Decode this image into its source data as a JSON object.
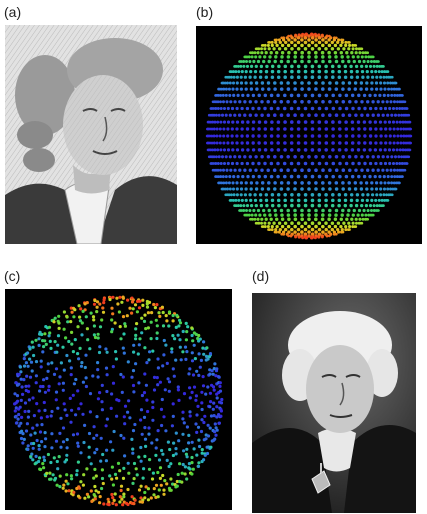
{
  "panels": [
    {
      "id": "a",
      "label": "(a)"
    },
    {
      "id": "b",
      "label": "(b)"
    },
    {
      "id": "c",
      "label": "(c)"
    },
    {
      "id": "d",
      "label": "(d)"
    }
  ]
}
